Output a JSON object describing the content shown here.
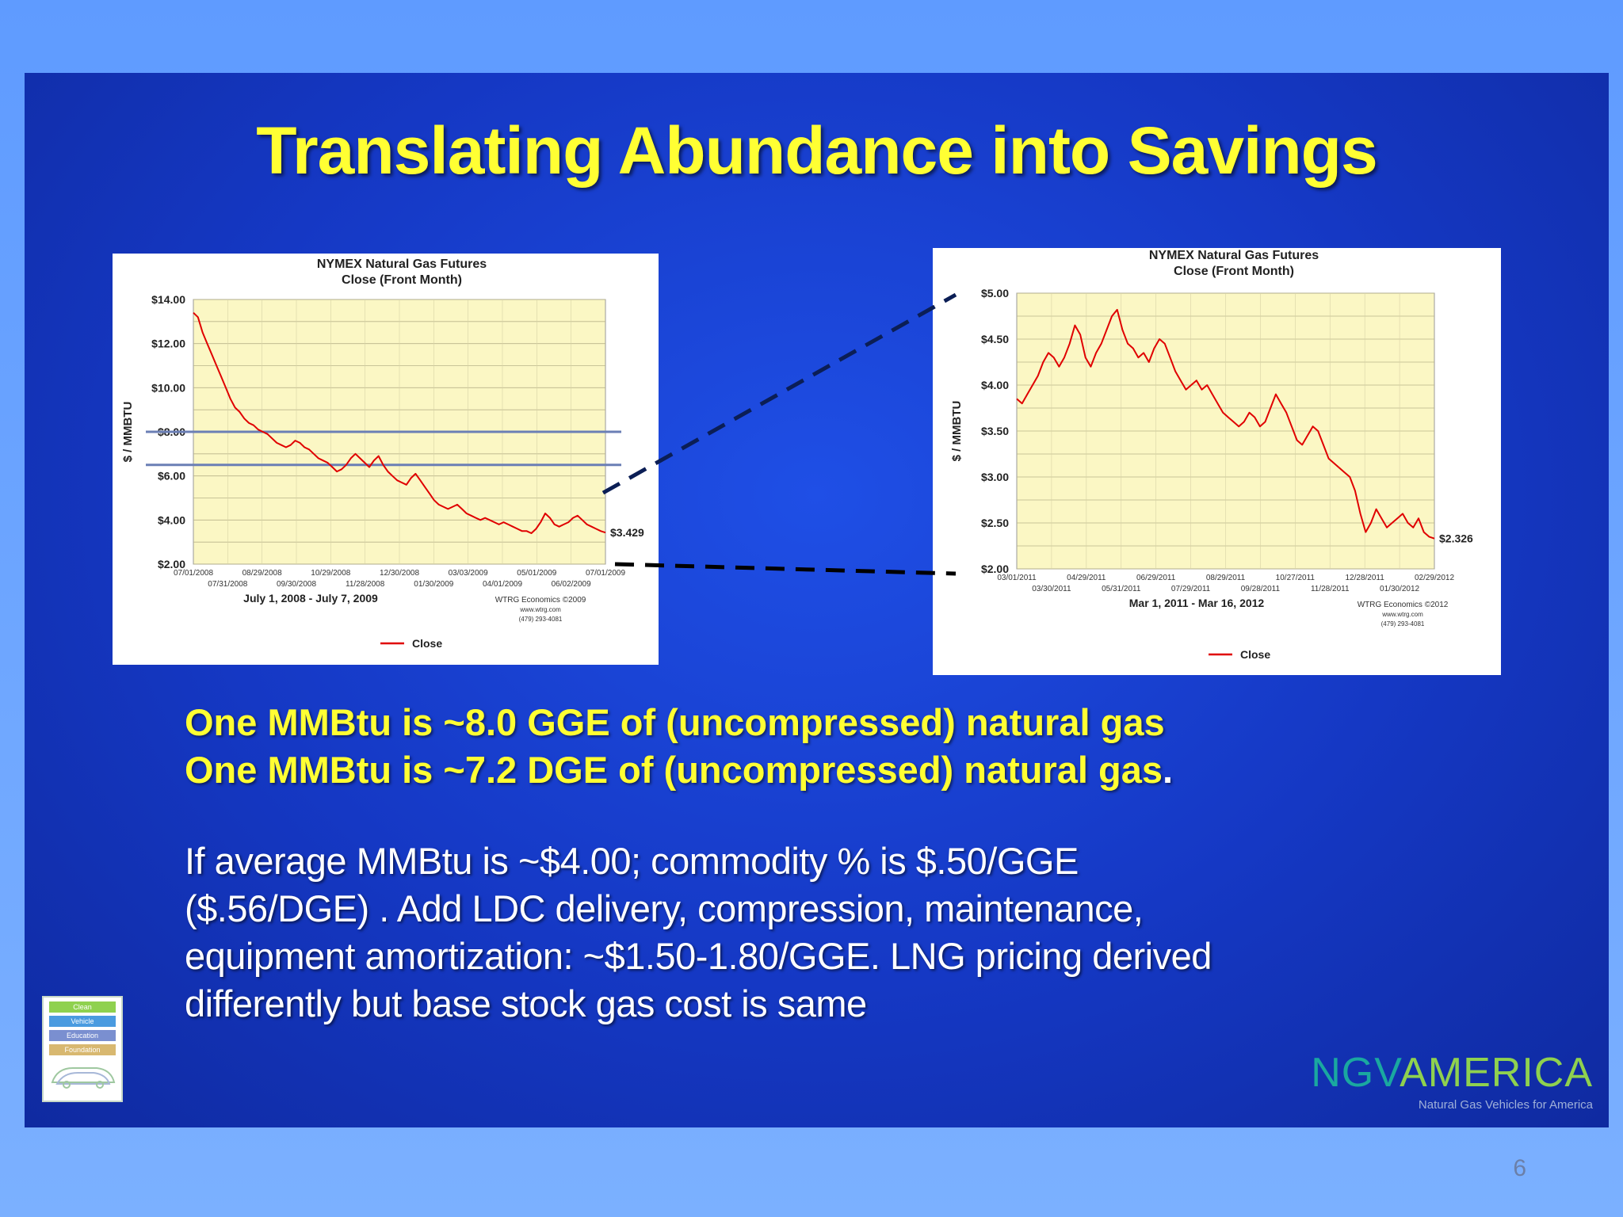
{
  "slide": {
    "title": "Translating Abundance into Savings",
    "facts": [
      "One MMBtu is ~8.0 GGE of (uncompressed) natural gas",
      "One MMBtu is ~7.2 DGE of (uncompressed) natural gas"
    ],
    "facts_suffix": ".",
    "paragraph_lines": [
      "If average MMBtu is ~$4.00; commodity % is $.50/GGE",
      "($.56/DGE) . Add LDC delivery, compression, maintenance,",
      "equipment amortization: ~$1.50-1.80/GGE. LNG pricing derived",
      "differently but base stock gas cost is same"
    ],
    "page_number": "6"
  },
  "logos": {
    "left_logo_lines": [
      "Clean",
      "Vehicle",
      "Education",
      "Foundation"
    ],
    "left_logo_colors": [
      "#8fd14f",
      "#4a9be0",
      "#7a8fd0",
      "#d8b870"
    ],
    "ngv_word_part1": "NGV",
    "ngv_word_part2": "AMERICA",
    "ngv_tagline": "Natural Gas Vehicles for America"
  },
  "chart_data": [
    {
      "type": "line",
      "title": "NYMEX Natural Gas Futures",
      "subtitle": "Close (Front Month)",
      "ylabel": "$ / MMBTU",
      "xlabel": "July 1, 2008 - July 7, 2009",
      "credit": [
        "WTRG Economics ©2009",
        "www.wtrg.com",
        "(479) 293-4081"
      ],
      "ylim": [
        2,
        14
      ],
      "yticks": [
        "$14.00",
        "$12.00",
        "$10.00",
        "$8.00",
        "$6.00",
        "$4.00",
        "$2.00"
      ],
      "ytick_values": [
        14,
        12,
        10,
        8,
        6,
        4,
        2
      ],
      "xticks_top": [
        "07/01/2008",
        "08/29/2008",
        "10/29/2008",
        "12/30/2008",
        "03/03/2009",
        "05/01/2009",
        "07/01/2009"
      ],
      "xticks_bottom": [
        "07/31/2008",
        "09/30/2008",
        "11/28/2008",
        "01/30/2009",
        "04/01/2009",
        "06/02/2009"
      ],
      "legend": "Close",
      "end_label": "$3.429",
      "reference_lines": [
        8.0,
        6.5
      ],
      "series": [
        {
          "name": "Close",
          "values": [
            13.4,
            13.2,
            12.5,
            12.0,
            11.5,
            11.0,
            10.5,
            10.0,
            9.5,
            9.1,
            8.9,
            8.6,
            8.4,
            8.3,
            8.1,
            8.0,
            7.9,
            7.7,
            7.5,
            7.4,
            7.3,
            7.4,
            7.6,
            7.5,
            7.3,
            7.2,
            7.0,
            6.8,
            6.7,
            6.6,
            6.4,
            6.2,
            6.3,
            6.5,
            6.8,
            7.0,
            6.8,
            6.6,
            6.4,
            6.7,
            6.9,
            6.5,
            6.2,
            6.0,
            5.8,
            5.7,
            5.6,
            5.9,
            6.1,
            5.8,
            5.5,
            5.2,
            4.9,
            4.7,
            4.6,
            4.5,
            4.6,
            4.7,
            4.5,
            4.3,
            4.2,
            4.1,
            4.0,
            4.1,
            4.0,
            3.9,
            3.8,
            3.9,
            3.8,
            3.7,
            3.6,
            3.5,
            3.5,
            3.4,
            3.6,
            3.9,
            4.3,
            4.1,
            3.8,
            3.7,
            3.8,
            3.9,
            4.1,
            4.2,
            4.0,
            3.8,
            3.7,
            3.6,
            3.5,
            3.43
          ]
        }
      ]
    },
    {
      "type": "line",
      "title": "NYMEX Natural Gas Futures",
      "subtitle": "Close (Front Month)",
      "ylabel": "$ / MMBTU",
      "xlabel": "Mar 1, 2011 - Mar 16, 2012",
      "credit": [
        "WTRG Economics ©2012",
        "www.wtrg.com",
        "(479) 293-4081"
      ],
      "ylim": [
        2,
        5
      ],
      "yticks": [
        "$5.00",
        "$4.50",
        "$4.00",
        "$3.50",
        "$3.00",
        "$2.50",
        "$2.00"
      ],
      "ytick_values": [
        5,
        4.5,
        4,
        3.5,
        3,
        2.5,
        2
      ],
      "xticks_top": [
        "03/01/2011",
        "04/29/2011",
        "06/29/2011",
        "08/29/2011",
        "10/27/2011",
        "12/28/2011",
        "02/29/2012"
      ],
      "xticks_bottom": [
        "03/30/2011",
        "05/31/2011",
        "07/29/2011",
        "09/28/2011",
        "11/28/2011",
        "01/30/2012"
      ],
      "legend": "Close",
      "end_label": "$2.326",
      "series": [
        {
          "name": "Close",
          "values": [
            3.85,
            3.8,
            3.9,
            4.0,
            4.1,
            4.25,
            4.35,
            4.3,
            4.2,
            4.3,
            4.45,
            4.65,
            4.55,
            4.3,
            4.2,
            4.35,
            4.45,
            4.6,
            4.75,
            4.82,
            4.6,
            4.45,
            4.4,
            4.3,
            4.35,
            4.25,
            4.4,
            4.5,
            4.45,
            4.3,
            4.15,
            4.05,
            3.95,
            4.0,
            4.05,
            3.95,
            4.0,
            3.9,
            3.8,
            3.7,
            3.65,
            3.6,
            3.55,
            3.6,
            3.7,
            3.65,
            3.55,
            3.6,
            3.75,
            3.9,
            3.8,
            3.7,
            3.55,
            3.4,
            3.35,
            3.45,
            3.55,
            3.5,
            3.35,
            3.2,
            3.15,
            3.1,
            3.05,
            3.0,
            2.85,
            2.6,
            2.4,
            2.5,
            2.65,
            2.55,
            2.45,
            2.5,
            2.55,
            2.6,
            2.5,
            2.45,
            2.55,
            2.4,
            2.35,
            2.33
          ]
        }
      ]
    }
  ]
}
